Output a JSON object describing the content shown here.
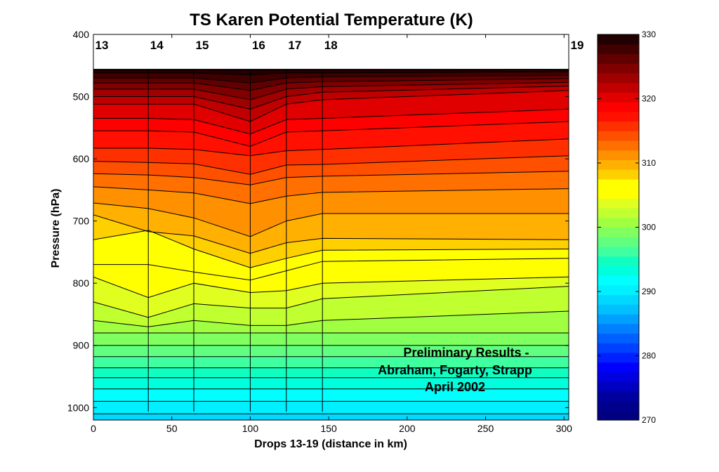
{
  "chart_data": {
    "type": "heatmap",
    "title": "TS Karen Potential Temperature (K)",
    "xlabel": "Drops 13-19 (distance in km)",
    "ylabel": "Pressure (hPa)",
    "xlim": [
      0,
      303
    ],
    "ylim": [
      1020,
      400
    ],
    "x_ticks": [
      0,
      50,
      100,
      150,
      200,
      250,
      300
    ],
    "y_ticks": [
      400,
      500,
      600,
      700,
      800,
      900,
      1000
    ],
    "drops": [
      {
        "label": "13",
        "x": 0
      },
      {
        "label": "14",
        "x": 35
      },
      {
        "label": "15",
        "x": 64
      },
      {
        "label": "16",
        "x": 100
      },
      {
        "label": "17",
        "x": 123
      },
      {
        "label": "18",
        "x": 146
      },
      {
        "label": "19",
        "x": 303
      }
    ],
    "contour_x": [
      0,
      35,
      64,
      100,
      123,
      146,
      303
    ],
    "contour_interval_K": 1.5,
    "contour_start_K": 270,
    "contours": [
      {
        "theta": 330.0,
        "p": [
          456,
          456,
          456,
          456,
          456,
          456,
          456
        ]
      },
      {
        "theta": 328.5,
        "p": [
          462,
          462,
          462,
          465,
          462,
          462,
          460
        ]
      },
      {
        "theta": 327.0,
        "p": [
          470,
          470,
          470,
          478,
          470,
          468,
          466
        ]
      },
      {
        "theta": 325.5,
        "p": [
          478,
          478,
          478,
          490,
          478,
          476,
          471
        ]
      },
      {
        "theta": 324.0,
        "p": [
          488,
          488,
          488,
          505,
          488,
          484,
          477
        ]
      },
      {
        "theta": 322.5,
        "p": [
          500,
          500,
          500,
          520,
          500,
          493,
          483
        ]
      },
      {
        "theta": 321.0,
        "p": [
          512,
          512,
          512,
          540,
          512,
          505,
          490
        ]
      },
      {
        "theta": 319.5,
        "p": [
          535,
          535,
          537,
          560,
          537,
          535,
          520
        ]
      },
      {
        "theta": 318.0,
        "p": [
          555,
          555,
          557,
          580,
          557,
          555,
          540
        ]
      },
      {
        "theta": 316.5,
        "p": [
          583,
          583,
          585,
          595,
          587,
          585,
          568
        ]
      },
      {
        "theta": 315.0,
        "p": [
          604,
          606,
          608,
          625,
          610,
          609,
          595
        ]
      },
      {
        "theta": 313.5,
        "p": [
          624,
          626,
          630,
          642,
          630,
          628,
          620
        ]
      },
      {
        "theta": 312.0,
        "p": [
          645,
          650,
          655,
          672,
          660,
          654,
          648
        ]
      },
      {
        "theta": 310.5,
        "p": [
          671,
          680,
          695,
          725,
          700,
          688,
          688
        ]
      },
      {
        "theta": 309.0,
        "p": [
          690,
          717,
          724,
          752,
          735,
          728,
          730
        ]
      },
      {
        "theta": 307.5,
        "p": [
          730,
          715,
          745,
          775,
          760,
          747,
          745
        ]
      },
      {
        "theta": 306.0,
        "p": [
          770,
          770,
          782,
          795,
          780,
          765,
          760
        ]
      },
      {
        "theta": 304.5,
        "p": [
          790,
          823,
          800,
          815,
          812,
          800,
          790
        ]
      },
      {
        "theta": 303.0,
        "p": [
          830,
          855,
          833,
          840,
          840,
          825,
          805
        ]
      },
      {
        "theta": 301.5,
        "p": [
          860,
          870,
          860,
          868,
          868,
          860,
          845
        ]
      },
      {
        "theta": 300.0,
        "p": [
          880,
          880,
          880,
          880,
          880,
          880,
          880
        ]
      },
      {
        "theta": 298.5,
        "p": [
          900,
          900,
          900,
          900,
          900,
          900,
          900
        ]
      },
      {
        "theta": 297.0,
        "p": [
          918,
          918,
          918,
          918,
          918,
          918,
          918
        ]
      },
      {
        "theta": 295.5,
        "p": [
          936,
          936,
          936,
          936,
          936,
          936,
          936
        ]
      },
      {
        "theta": 294.0,
        "p": [
          952,
          952,
          952,
          952,
          952,
          952,
          952
        ]
      },
      {
        "theta": 292.5,
        "p": [
          970,
          970,
          970,
          970,
          970,
          970,
          970
        ]
      },
      {
        "theta": 291.0,
        "p": [
          990,
          990,
          990,
          990,
          990,
          990,
          990
        ]
      },
      {
        "theta": 289.5,
        "p": [
          1010,
          1010,
          1010,
          1010,
          1010,
          1010,
          1010
        ]
      }
    ],
    "colorbar": {
      "min": 270,
      "max": 330,
      "ticks": [
        270,
        280,
        290,
        300,
        310,
        320,
        330
      ],
      "colors": [
        "#000080",
        "#00008f",
        "#00009f",
        "#0000c0",
        "#0000e0",
        "#0000ff",
        "#0020ff",
        "#0040ff",
        "#0060ff",
        "#0080ff",
        "#00a0ff",
        "#00c0ff",
        "#00d8ff",
        "#00f0ff",
        "#00ffff",
        "#00ffdd",
        "#10ffc0",
        "#40ffa0",
        "#60ff80",
        "#80ff60",
        "#a0ff40",
        "#c0ff30",
        "#e0ff20",
        "#ffff00",
        "#ffff00",
        "#ffd000",
        "#ffb000",
        "#ff9000",
        "#ff7000",
        "#ff5000",
        "#ff3000",
        "#ff1000",
        "#ff0000",
        "#e00000",
        "#c00000",
        "#a00000",
        "#800000",
        "#600000",
        "#400000",
        "#200000"
      ]
    },
    "annotation": [
      "Preliminary Results -",
      "Abraham, Fogarty, Strapp",
      "April 2002"
    ],
    "colors": {
      "annotation": "#2a1f78",
      "contour_line": "#000000"
    }
  }
}
